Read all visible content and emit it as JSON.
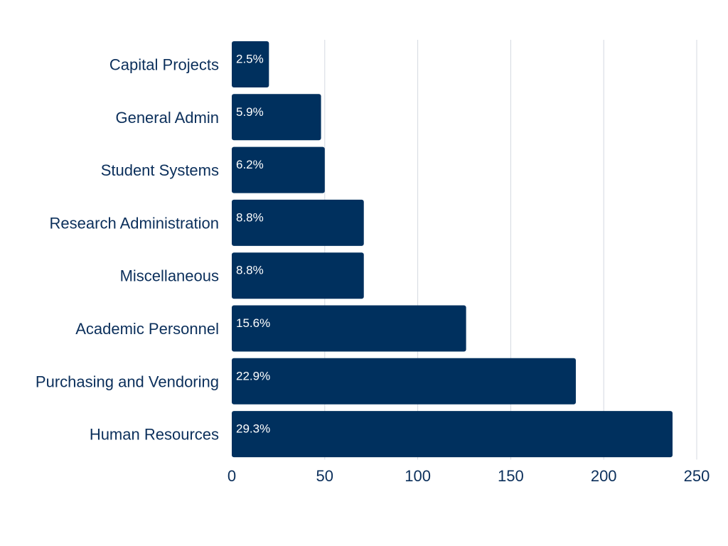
{
  "chart_data": {
    "type": "bar",
    "orientation": "horizontal",
    "title": "",
    "xlabel": "",
    "ylabel": "",
    "categories": [
      "Capital Projects",
      "General Admin",
      "Student Systems",
      "Research Administration",
      "Miscellaneous",
      "Academic Personnel",
      "Purchasing and Vendoring",
      "Human Resources"
    ],
    "values": [
      20,
      48,
      50,
      71,
      71,
      126,
      185,
      237
    ],
    "data_labels": [
      "2.5%",
      "5.9%",
      "6.2%",
      "8.8%",
      "8.8%",
      "15.6%",
      "22.9%",
      "29.3%"
    ],
    "xlim": [
      0,
      250
    ],
    "xticks": [
      0,
      50,
      100,
      150,
      200,
      250
    ],
    "xtick_labels": [
      "0",
      "50",
      "100",
      "150",
      "200",
      "250"
    ],
    "grid": "vertical",
    "legend": "none",
    "colors": {
      "bar": "#00305e",
      "text": "#0b2f5b",
      "bar_label": "#ffffff",
      "grid": "#d4d8e0"
    }
  }
}
